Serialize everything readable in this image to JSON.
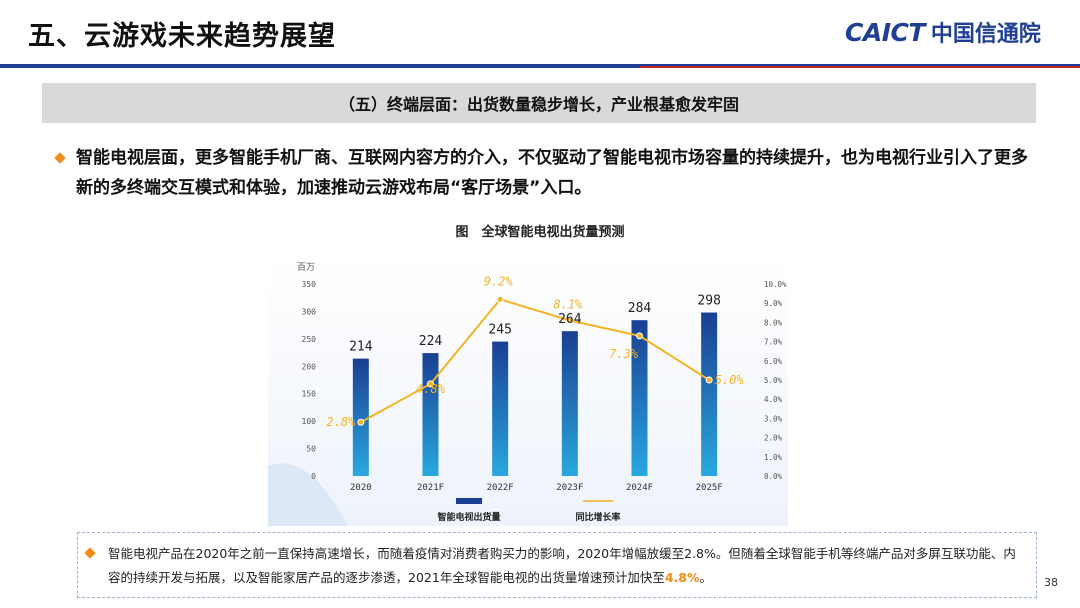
{
  "slide": {
    "title": "五、云游戏未来趋势展望",
    "logo_en": "CAICT",
    "logo_cn": "中国信通院",
    "section_banner": "（五）终端层面：出货数量稳步增长，产业根基愈发牢固",
    "paragraph": "智能电视层面，更多智能手机厂商、互联网内容方的介入，不仅驱动了智能电视市场容量的持续提升，也为电视行业引入了更多新的多终端交互模式和体验，加速推动云游戏布局“客厅场景”入口。",
    "figure_title": "图　全球智能电视出货量预测",
    "note_text": "智能电视产品在2020年之前一直保持高速增长，而随着疫情对消费者购买力的影响，2020年增幅放缓至2.8%。但随着全球智能手机等终端产品对多屏互联功能、内容的持续开发与拓展，以及智能家居产品的逐步渗透，2021年全球智能电视的出货量增速预计加快至",
    "note_highlight": "4.8%",
    "note_end": "。",
    "page_number": "38"
  },
  "colors": {
    "brand_blue": "#1e3f94",
    "accent_orange": "#f28c18",
    "bar_top": "#1a3f93",
    "bar_bottom": "#29a8e0",
    "line": "#f5b324"
  },
  "chart_data": {
    "type": "bar",
    "categories": [
      "2020",
      "2021F",
      "2022F",
      "2023F",
      "2024F",
      "2025F"
    ],
    "series": [
      {
        "name": "智能电视出货量",
        "type": "bar",
        "axis": "left",
        "values": [
          214,
          224,
          245,
          264,
          284,
          298
        ],
        "labels": [
          "214",
          "224",
          "245",
          "264",
          "284",
          "298"
        ]
      },
      {
        "name": "同比增长率",
        "type": "line",
        "axis": "right",
        "values": [
          2.8,
          4.8,
          9.2,
          8.1,
          7.3,
          5.0
        ],
        "labels": [
          "2.8%",
          "4.8%",
          "9.2%",
          "8.1%",
          "7.3%",
          "5.0%"
        ]
      }
    ],
    "y_left": {
      "unit": "百万",
      "min": 0,
      "max": 350,
      "ticks": [
        "0",
        "50",
        "100",
        "150",
        "200",
        "250",
        "300",
        "350"
      ]
    },
    "y_right": {
      "min": 0,
      "max": 10,
      "ticks": [
        "0.0%",
        "1.0%",
        "2.0%",
        "3.0%",
        "4.0%",
        "5.0%",
        "6.0%",
        "7.0%",
        "8.0%",
        "9.0%",
        "10.0%"
      ]
    },
    "legend": {
      "position": "bottom"
    },
    "grid": false
  }
}
